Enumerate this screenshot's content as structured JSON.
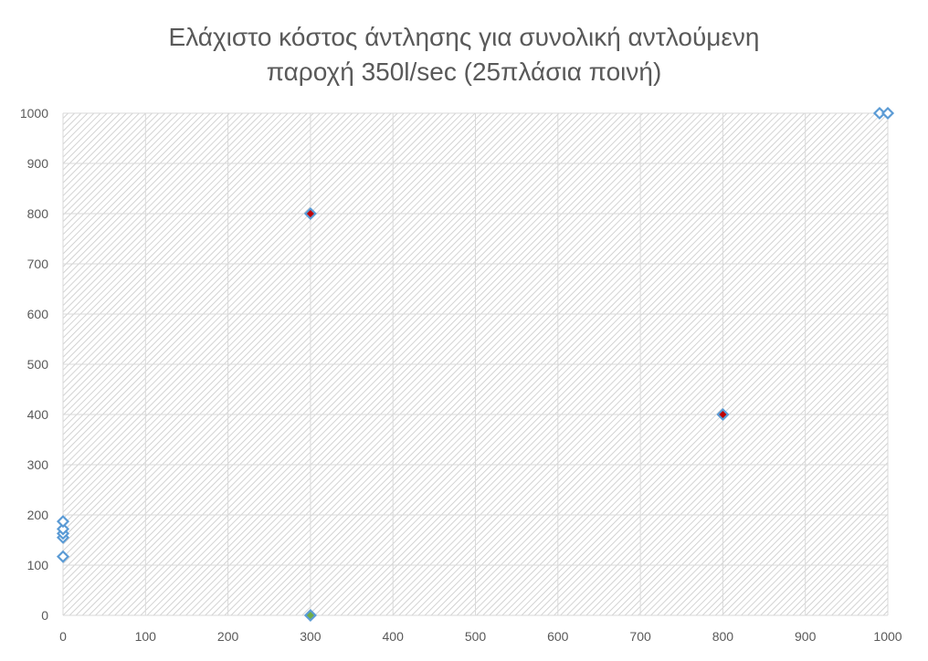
{
  "chart_data": {
    "type": "scatter",
    "title": [
      "Ελάχιστο κόστος άντλησης για συνολική αντλούμενη",
      "παροχή 350l/sec (25πλάσια ποινή)"
    ],
    "xlabel": "",
    "ylabel": "",
    "xlim": [
      0,
      1000
    ],
    "ylim": [
      0,
      1000
    ],
    "x_ticks": [
      0,
      100,
      200,
      300,
      400,
      500,
      600,
      700,
      800,
      900,
      1000
    ],
    "y_ticks": [
      0,
      100,
      200,
      300,
      400,
      500,
      600,
      700,
      800,
      900,
      1000
    ],
    "grid": true,
    "background_pattern": "diagonal-hatch",
    "colors": {
      "marker_outline": "#5b9bd5",
      "highlight_red": "#c00000",
      "highlight_green": "#70ad47",
      "grid": "#d9d9d9",
      "text": "#595959"
    },
    "series": [
      {
        "marker": "diamond-open",
        "points": [
          {
            "x": 0,
            "y": 117,
            "fill": "none"
          },
          {
            "x": 0,
            "y": 155,
            "fill": "none"
          },
          {
            "x": 0,
            "y": 163,
            "fill": "none"
          },
          {
            "x": 0,
            "y": 172,
            "fill": "none"
          },
          {
            "x": 0,
            "y": 187,
            "fill": "none"
          },
          {
            "x": 300,
            "y": 0,
            "fill": "green"
          },
          {
            "x": 300,
            "y": 800,
            "fill": "red"
          },
          {
            "x": 800,
            "y": 400,
            "fill": "red"
          },
          {
            "x": 990,
            "y": 1000,
            "fill": "none"
          },
          {
            "x": 1000,
            "y": 1000,
            "fill": "none"
          }
        ]
      }
    ]
  }
}
